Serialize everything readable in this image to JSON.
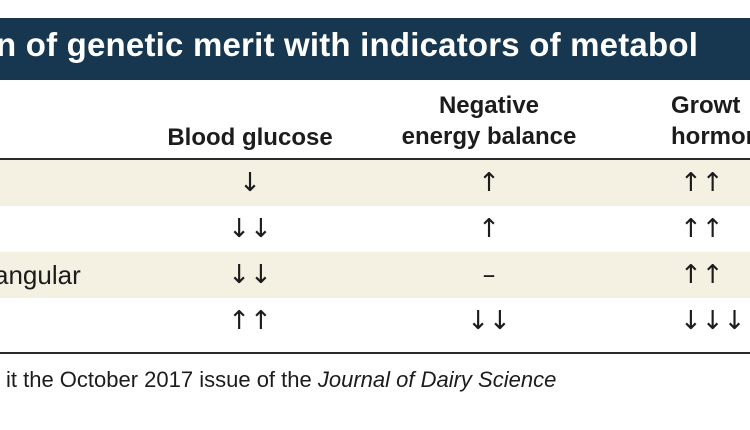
{
  "table": {
    "title": "n of genetic merit with indicators of metabol",
    "columns": {
      "blood_glucose": "Blood glucose",
      "neb_line1": "Negative",
      "neb_line2": "energy balance",
      "gh_line1": "Growt",
      "gh_line2": "hormon"
    },
    "rows": [
      {
        "label": "",
        "blood_glucose": "↓",
        "negative_energy_balance": "↑",
        "growth_hormone": "↑↑"
      },
      {
        "label": "",
        "blood_glucose": "↓↓",
        "negative_energy_balance": "↑",
        "growth_hormone": "↑↑"
      },
      {
        "label": "angular",
        "blood_glucose": "↓↓",
        "negative_energy_balance": "–",
        "growth_hormone": "↑↑"
      },
      {
        "label": "",
        "blood_glucose": "↑↑",
        "negative_energy_balance": "↓↓",
        "growth_hormone": "↓↓↓"
      }
    ],
    "footer": {
      "text": "it the October 2017 issue of the ",
      "journal": "Journal of Dairy Science"
    }
  },
  "colors": {
    "title_background": "#16374f",
    "row_shading": "#f4f0e2",
    "rule": "#2a2a2a"
  }
}
